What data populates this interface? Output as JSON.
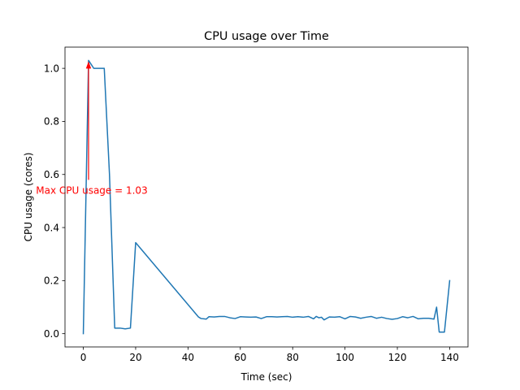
{
  "chart_data": {
    "type": "line",
    "title": "CPU usage over Time",
    "xlabel": "Time (sec)",
    "ylabel": "CPU usage (cores)",
    "xlim": [
      -7,
      147
    ],
    "ylim": [
      -0.05,
      1.08
    ],
    "xticks": [
      0,
      20,
      40,
      60,
      80,
      100,
      120,
      140
    ],
    "yticks": [
      0.0,
      0.2,
      0.4,
      0.6,
      0.8,
      1.0
    ],
    "xtick_labels": [
      "0",
      "20",
      "40",
      "60",
      "80",
      "100",
      "120",
      "140"
    ],
    "ytick_labels": [
      "0.0",
      "0.2",
      "0.4",
      "0.6",
      "0.8",
      "1.0"
    ],
    "grid": false,
    "line_color": "#1f77b4",
    "series": [
      {
        "x": [
          0,
          2,
          4,
          6,
          8,
          10,
          12,
          14,
          16,
          18,
          20,
          44,
          45,
          46,
          47,
          48,
          50,
          52,
          54,
          56,
          58,
          60,
          62,
          64,
          66,
          68,
          70,
          72,
          74,
          76,
          78,
          80,
          82,
          84,
          86,
          88,
          89,
          90,
          91,
          92,
          94,
          96,
          98,
          100,
          102,
          104,
          106,
          108,
          110,
          112,
          114,
          116,
          118,
          120,
          122,
          124,
          126,
          128,
          130,
          132,
          134,
          135,
          136,
          138,
          140
        ],
        "y": [
          0.0,
          1.03,
          1.0,
          1.0,
          1.0,
          0.6,
          0.021,
          0.021,
          0.018,
          0.021,
          0.343,
          0.063,
          0.057,
          0.056,
          0.055,
          0.064,
          0.063,
          0.065,
          0.065,
          0.06,
          0.057,
          0.064,
          0.063,
          0.062,
          0.063,
          0.057,
          0.064,
          0.064,
          0.063,
          0.064,
          0.065,
          0.062,
          0.064,
          0.062,
          0.065,
          0.056,
          0.065,
          0.06,
          0.062,
          0.052,
          0.063,
          0.062,
          0.064,
          0.056,
          0.065,
          0.063,
          0.058,
          0.062,
          0.065,
          0.058,
          0.062,
          0.057,
          0.054,
          0.057,
          0.064,
          0.06,
          0.065,
          0.056,
          0.058,
          0.058,
          0.055,
          0.1,
          0.006,
          0.006,
          0.2
        ]
      }
    ],
    "annotation": {
      "text": "Max CPU usage = 1.03",
      "color": "#ff0000",
      "point": [
        2,
        1.03
      ],
      "text_anchor_data": [
        2,
        0.54
      ]
    }
  }
}
